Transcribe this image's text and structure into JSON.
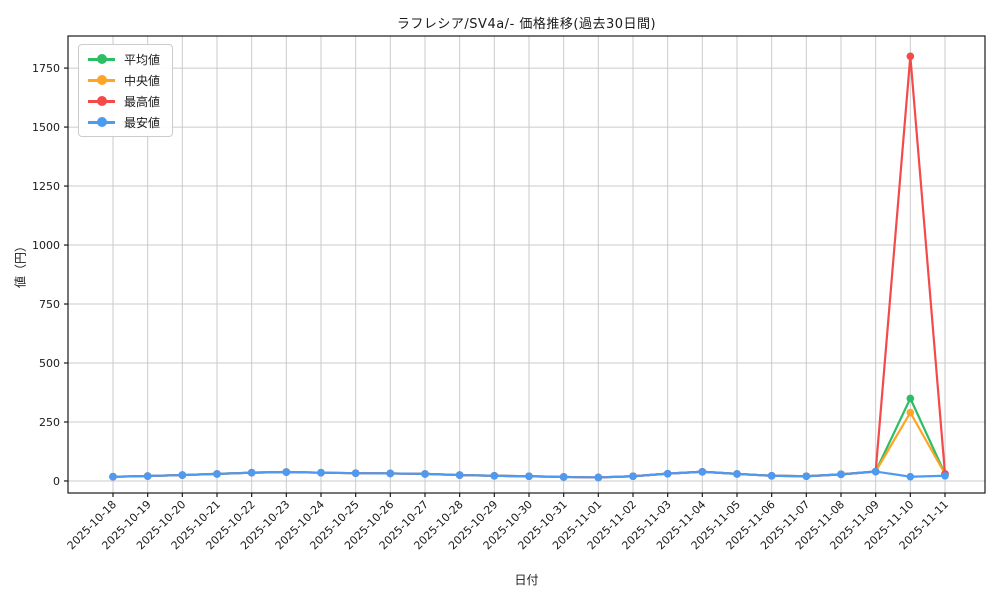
{
  "chart_data": {
    "type": "line",
    "title": "ラフレシア/SV4a/- 価格推移(過去30日間)",
    "xlabel": "日付",
    "ylabel": "値（円）",
    "categories": [
      "2025-10-18",
      "2025-10-19",
      "2025-10-20",
      "2025-10-21",
      "2025-10-22",
      "2025-10-23",
      "2025-10-24",
      "2025-10-25",
      "2025-10-26",
      "2025-10-27",
      "2025-10-28",
      "2025-10-29",
      "2025-10-30",
      "2025-10-31",
      "2025-11-01",
      "2025-11-02",
      "2025-11-03",
      "2025-11-04",
      "2025-11-05",
      "2025-11-06",
      "2025-11-07",
      "2025-11-08",
      "2025-11-09",
      "2025-11-10",
      "2025-11-11"
    ],
    "series": [
      {
        "name": "平均値",
        "color": "#2dbd64",
        "values": [
          18,
          21,
          25,
          30,
          35,
          38,
          35,
          33,
          32,
          30,
          25,
          22,
          20,
          17,
          15,
          20,
          31,
          39,
          30,
          22,
          20,
          28,
          40,
          350,
          30
        ]
      },
      {
        "name": "中央値",
        "color": "#ffa425",
        "values": [
          18,
          21,
          25,
          30,
          35,
          38,
          35,
          33,
          32,
          30,
          25,
          22,
          20,
          17,
          15,
          20,
          31,
          39,
          30,
          22,
          20,
          28,
          40,
          290,
          30
        ]
      },
      {
        "name": "最高値",
        "color": "#f44a4a",
        "values": [
          18,
          21,
          25,
          30,
          35,
          38,
          35,
          33,
          32,
          30,
          25,
          22,
          20,
          17,
          15,
          20,
          31,
          39,
          30,
          22,
          20,
          28,
          40,
          1800,
          30
        ]
      },
      {
        "name": "最安値",
        "color": "#4d9af2",
        "values": [
          18,
          21,
          25,
          30,
          35,
          38,
          35,
          33,
          32,
          30,
          25,
          22,
          20,
          17,
          15,
          20,
          31,
          39,
          30,
          22,
          20,
          28,
          40,
          18,
          22
        ]
      }
    ],
    "yticks": [
      0,
      250,
      500,
      750,
      1000,
      1250,
      1500,
      1750
    ],
    "ylim": [
      -51,
      1886
    ],
    "grid": true,
    "legend_position": "upper-left",
    "colors": {
      "grid": "#cbcbcb",
      "spine": "#1a1a1a",
      "text": "#1a1a1a",
      "background": "#ffffff"
    }
  }
}
